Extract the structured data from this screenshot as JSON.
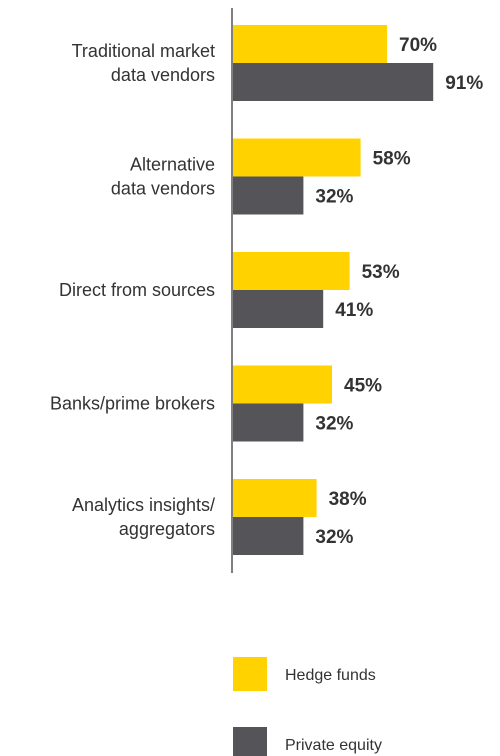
{
  "chart_data": {
    "type": "bar",
    "orientation": "horizontal",
    "categories": [
      [
        "Traditional market",
        "data vendors"
      ],
      [
        "Alternative",
        "data vendors"
      ],
      [
        "Direct from sources"
      ],
      [
        "Banks/prime brokers"
      ],
      [
        "Analytics insights/",
        "aggregators"
      ]
    ],
    "series": [
      {
        "name": "Hedge funds",
        "values": [
          70,
          58,
          53,
          45,
          38
        ],
        "color": "#FFD200"
      },
      {
        "name": "Private equity",
        "values": [
          91,
          32,
          41,
          32,
          32
        ],
        "color": "#555559"
      }
    ],
    "value_suffix": "%",
    "xlim": [
      0,
      100
    ],
    "legend": "bottom",
    "grid": false
  }
}
